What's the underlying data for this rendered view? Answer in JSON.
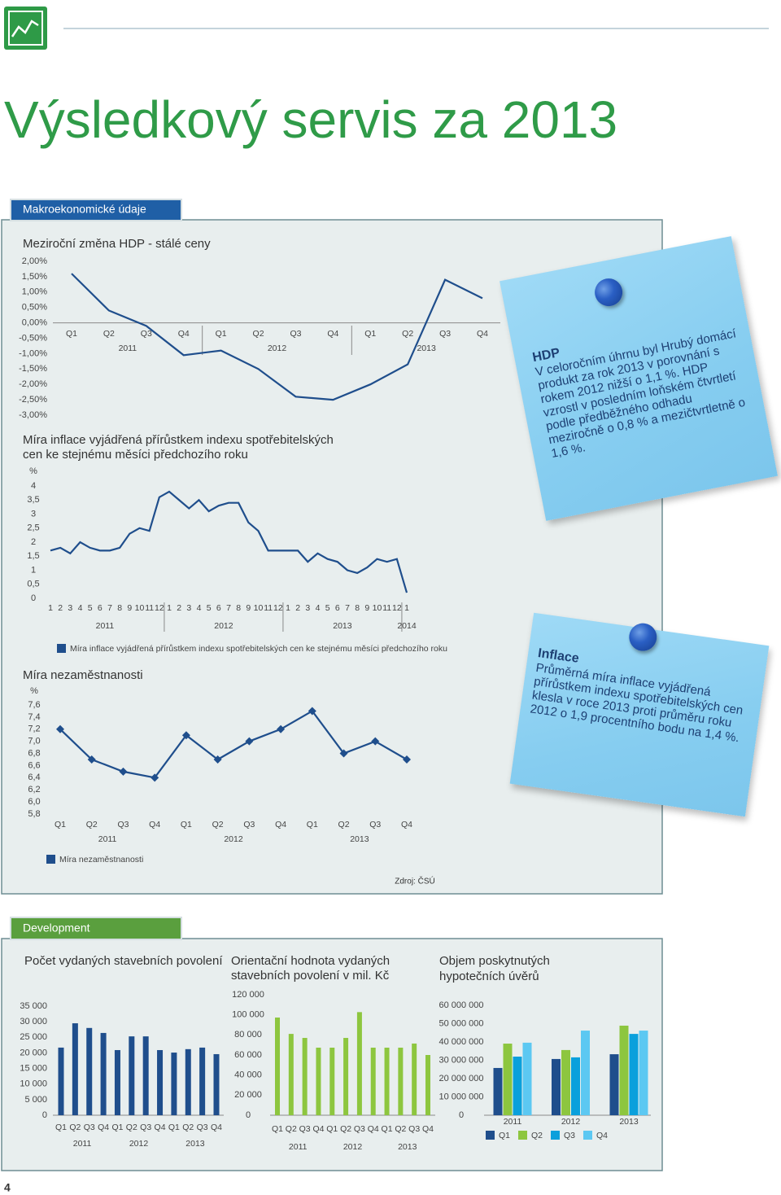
{
  "header": {
    "title": "Výsledkový servis za 2013",
    "page_number": 4
  },
  "sections": [
    {
      "tab": "Makroekonomické údaje",
      "source": "Zdroj: ČSÚ"
    },
    {
      "tab": "Development"
    }
  ],
  "notes": [
    {
      "heading": "HDP",
      "text": "V celoročním úhrnu byl Hrubý domácí produkt za rok 2013 v porovnání s rokem 2012 nižší o 1,1 %. HDP vzrostl v posledním loňském čtvrtletí podle předběžného odhadu meziročně o 0,8 % a mezičtvrtletně o 1,6 %."
    },
    {
      "heading": "Inflace",
      "text": "Průměrná míra inflace vyjádřená přírůstkem indexu spotřebitelských cen klesla v roce 2013 proti průměru roku 2012 o 1,9 procentního bodu na 1,4 %."
    }
  ],
  "chart_data": [
    {
      "type": "line",
      "title": [
        "Meziroční změna HDP - stálé ceny"
      ],
      "categories": [
        "Q1",
        "Q2",
        "Q3",
        "Q4",
        "Q1",
        "Q2",
        "Q3",
        "Q4",
        "Q1",
        "Q2",
        "Q3",
        "Q4"
      ],
      "x_groups": [
        "2011",
        "2012",
        "2013"
      ],
      "values": [
        1.6,
        0.4,
        -0.1,
        -1.05,
        -0.9,
        -1.5,
        -2.4,
        -2.5,
        -2.0,
        -1.35,
        1.4,
        0.8
      ],
      "color": "#1f4e8c",
      "ylim": [
        -3,
        2
      ],
      "yticks": [
        {
          "value": 2,
          "label": "2,00%"
        },
        {
          "value": 1.5,
          "label": "1,50%"
        },
        {
          "value": 1,
          "label": "1,00%"
        },
        {
          "value": 0.5,
          "label": "0,50%"
        },
        {
          "value": 0,
          "label": "0,00%"
        },
        {
          "value": -0.5,
          "label": "-0,50%"
        },
        {
          "value": -1,
          "label": "-1,00%"
        },
        {
          "value": -1.5,
          "label": "-1,50%"
        },
        {
          "value": -2,
          "label": "-2,00%"
        },
        {
          "value": -2.5,
          "label": "-2,50%"
        },
        {
          "value": -3,
          "label": "-3,00%"
        }
      ]
    },
    {
      "type": "line",
      "title": [
        "Míra inflace vyjádřená přírůstkem indexu spotřebitelských",
        "cen ke stejnému měsíci předchozího roku"
      ],
      "y_label": "%",
      "categories": [
        "1",
        "2",
        "3",
        "4",
        "5",
        "6",
        "7",
        "8",
        "9",
        "10",
        "11",
        "12",
        "1",
        "2",
        "3",
        "4",
        "5",
        "6",
        "7",
        "8",
        "9",
        "10",
        "11",
        "12",
        "1",
        "2",
        "3",
        "4",
        "5",
        "6",
        "7",
        "8",
        "9",
        "10",
        "11",
        "12",
        "1"
      ],
      "x_groups": [
        "2011",
        "2012",
        "2013",
        "2014"
      ],
      "series": [
        {
          "name": "Míra inflace vyjádřená přírůstkem indexu spotřebitelských cen ke stejnému měsíci předchozího roku",
          "color": "#1f4e8c",
          "values": [
            1.7,
            1.8,
            1.6,
            2.0,
            1.8,
            1.7,
            1.7,
            1.8,
            2.3,
            2.5,
            2.4,
            3.6,
            3.8,
            3.5,
            3.2,
            3.5,
            3.1,
            3.3,
            3.4,
            3.4,
            2.7,
            2.4,
            1.7,
            1.7,
            1.7,
            1.7,
            1.3,
            1.6,
            1.4,
            1.3,
            1.0,
            0.9,
            1.1,
            1.4,
            1.3,
            1.4,
            0.2
          ]
        }
      ],
      "ylim": [
        0,
        4
      ],
      "yticks": [
        4,
        {
          "value": 3.5,
          "label": "3,5"
        },
        3,
        {
          "value": 2.5,
          "label": "2,5"
        },
        2,
        {
          "value": 1.5,
          "label": "1,5"
        },
        1,
        {
          "value": 0.5,
          "label": "0,5"
        },
        0
      ]
    },
    {
      "type": "line",
      "markers": "diamond",
      "title": [
        "Míra nezaměstnanosti"
      ],
      "y_label": "%",
      "categories": [
        "Q1",
        "Q2",
        "Q3",
        "Q4",
        "Q1",
        "Q2",
        "Q3",
        "Q4",
        "Q1",
        "Q2",
        "Q3",
        "Q4"
      ],
      "x_groups": [
        "2011",
        "2012",
        "2013"
      ],
      "series": [
        {
          "name": "Míra nezaměstnanosti",
          "color": "#1f4e8c",
          "values": [
            7.2,
            6.7,
            6.5,
            6.4,
            7.1,
            6.7,
            7.0,
            7.2,
            7.5,
            6.8,
            7.0,
            6.7
          ]
        }
      ],
      "ylim": [
        5.8,
        7.6
      ],
      "yticks": [
        {
          "value": 7.6,
          "label": "7,6"
        },
        {
          "value": 7.4,
          "label": "7,4"
        },
        {
          "value": 7.2,
          "label": "7,2"
        },
        {
          "value": 7,
          "label": "7,0"
        },
        {
          "value": 6.8,
          "label": "6,8"
        },
        {
          "value": 6.6,
          "label": "6,6"
        },
        {
          "value": 6.4,
          "label": "6,4"
        },
        {
          "value": 6.2,
          "label": "6,2"
        },
        {
          "value": 6,
          "label": "6,0"
        },
        {
          "value": 5.8,
          "label": "5,8"
        }
      ]
    },
    {
      "type": "bar",
      "title": [
        "Počet vydaných stavebních povolení"
      ],
      "categories": [
        "Q1",
        "Q2",
        "Q3",
        "Q4",
        "Q1",
        "Q2",
        "Q3",
        "Q4",
        "Q1",
        "Q2",
        "Q3",
        "Q4"
      ],
      "x_groups": [
        "2011",
        "2012",
        "2013"
      ],
      "values": [
        21700,
        29500,
        28000,
        26400,
        20900,
        25300,
        25300,
        20900,
        20100,
        21200,
        21700,
        19600
      ],
      "color": "#1f4e8c",
      "ylim": [
        0,
        35000
      ],
      "yticks": [
        {
          "value": 35000,
          "label": "35 000"
        },
        {
          "value": 30000,
          "label": "30 000"
        },
        {
          "value": 25000,
          "label": "25 000"
        },
        {
          "value": 20000,
          "label": "20 000"
        },
        {
          "value": 15000,
          "label": "15 000"
        },
        {
          "value": 10000,
          "label": "10 000"
        },
        {
          "value": 5000,
          "label": "5 000"
        },
        0
      ]
    },
    {
      "type": "bar",
      "title": [
        "Orientační hodnota vydaných",
        "stavebních povolení v mil. Kč"
      ],
      "categories": [
        "Q1",
        "Q2",
        "Q3",
        "Q4",
        "Q1",
        "Q2",
        "Q3",
        "Q4",
        "Q1",
        "Q2",
        "Q3",
        "Q4"
      ],
      "x_groups": [
        "2011",
        "2012",
        "2013"
      ],
      "values": [
        97300,
        81000,
        77000,
        67300,
        67300,
        77000,
        102700,
        67300,
        67300,
        67300,
        71400,
        60000
      ],
      "color": "#8dc63f",
      "ylim": [
        0,
        120000
      ],
      "yticks": [
        {
          "value": 120000,
          "label": "120 000"
        },
        {
          "value": 100000,
          "label": "100 000"
        },
        {
          "value": 80000,
          "label": "80 000"
        },
        {
          "value": 60000,
          "label": "60 000"
        },
        {
          "value": 40000,
          "label": "40 000"
        },
        {
          "value": 20000,
          "label": "20 000"
        },
        0
      ]
    },
    {
      "type": "bar",
      "title": [
        "Objem poskytnutých",
        "hypotečních úvěrů"
      ],
      "categories": [
        "2011",
        "2012",
        "2013"
      ],
      "series": [
        {
          "name": "Q1",
          "color": "#1f4e8c",
          "values": [
            25800000,
            30700000,
            33300000
          ]
        },
        {
          "name": "Q2",
          "color": "#8dc63f",
          "values": [
            39100000,
            35600000,
            48900000
          ]
        },
        {
          "name": "Q3",
          "color": "#0aa0dc",
          "values": [
            32000000,
            31600000,
            44400000
          ]
        },
        {
          "name": "Q4",
          "color": "#5cc8f2",
          "values": [
            39600000,
            46200000,
            46200000
          ]
        }
      ],
      "ylim": [
        0,
        60000000
      ],
      "yticks": [
        {
          "value": 60000000,
          "label": "60 000 000"
        },
        {
          "value": 50000000,
          "label": "50 000 000"
        },
        {
          "value": 40000000,
          "label": "40 000 000"
        },
        {
          "value": 30000000,
          "label": "30 000 000"
        },
        {
          "value": 20000000,
          "label": "20 000 000"
        },
        {
          "value": 10000000,
          "label": "10 000 000"
        },
        0
      ]
    }
  ]
}
